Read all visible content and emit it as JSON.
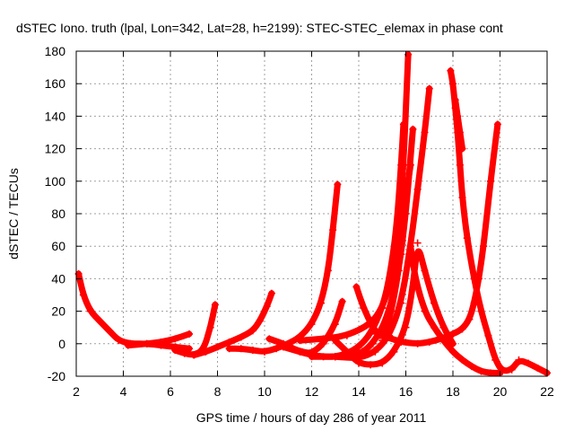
{
  "chart_data": {
    "type": "scatter",
    "title": "dSTEC Iono. truth (lpal, Lon=342, Lat=28, h=2199): STEC-STEC_elemax in phase cont",
    "xlabel": "GPS time / hours of day 286 of year 2011",
    "ylabel": "dSTEC  / TECUs",
    "xlim": [
      2,
      22
    ],
    "ylim": [
      -20,
      180
    ],
    "xticks": [
      2,
      4,
      6,
      8,
      10,
      12,
      14,
      16,
      18,
      20,
      22
    ],
    "yticks": [
      -20,
      0,
      20,
      40,
      60,
      80,
      100,
      120,
      140,
      160,
      180
    ],
    "grid": true,
    "marker": "plus",
    "color": "#ff0000",
    "series": [
      {
        "x": [
          2.1,
          2.3,
          2.6,
          3.0,
          3.4,
          3.8,
          4.3,
          5.0,
          5.6,
          6.2,
          6.8
        ],
        "y": [
          43,
          30,
          20,
          14,
          8,
          2,
          0,
          0,
          -1,
          -2,
          -3
        ]
      },
      {
        "x": [
          4.2,
          5.0,
          5.6,
          6.2,
          6.8
        ],
        "y": [
          -1,
          0,
          1,
          3,
          6
        ]
      },
      {
        "x": [
          6.2,
          6.6,
          7.0,
          7.4,
          7.7,
          7.9
        ],
        "y": [
          -4,
          -6,
          -7,
          -4,
          10,
          24
        ]
      },
      {
        "x": [
          7.0,
          7.5,
          8.0,
          8.5,
          9.0,
          9.5,
          9.8,
          10.1,
          10.3
        ],
        "y": [
          -7,
          -5,
          -2,
          1,
          4,
          8,
          14,
          23,
          31
        ]
      },
      {
        "x": [
          8.5,
          9.0,
          9.5,
          10.0,
          10.5,
          11.0,
          11.5,
          12.0,
          12.4,
          12.7,
          12.9,
          13.1
        ],
        "y": [
          -3,
          -3,
          -4,
          -5,
          -3,
          0,
          4,
          12,
          25,
          45,
          70,
          98
        ]
      },
      {
        "x": [
          10.2,
          10.8,
          11.2,
          11.6,
          12.0,
          12.5,
          13.0,
          13.3
        ],
        "y": [
          3,
          0,
          -3,
          -5,
          -6,
          0,
          12,
          26
        ]
      },
      {
        "x": [
          10.8,
          11.5,
          12.0,
          12.5,
          13.0,
          13.5,
          14.0,
          14.5,
          15.0,
          15.3,
          15.6,
          15.8,
          15.9
        ],
        "y": [
          -2,
          -5,
          -7,
          -8,
          -8,
          -6,
          -2,
          6,
          22,
          40,
          70,
          110,
          135
        ]
      },
      {
        "x": [
          11.5,
          12.5,
          13.5,
          14.5,
          15.0,
          15.4,
          15.7,
          15.9,
          16.1
        ],
        "y": [
          2,
          3,
          5,
          12,
          22,
          40,
          70,
          110,
          178
        ]
      },
      {
        "x": [
          12.0,
          13.0,
          14.0,
          14.6,
          15.2,
          15.7,
          16.0,
          16.3
        ],
        "y": [
          -8,
          -8,
          -7,
          0,
          15,
          45,
          80,
          132
        ]
      },
      {
        "x": [
          13.0,
          14.0,
          14.7,
          15.3,
          15.8,
          16.2,
          16.5,
          16.8,
          17.0
        ],
        "y": [
          -8,
          -9,
          -5,
          5,
          25,
          60,
          95,
          130,
          157
        ]
      },
      {
        "x": [
          13.9,
          14.2,
          14.6,
          15.0,
          15.4,
          15.8,
          16.0,
          16.2
        ],
        "y": [
          35,
          22,
          10,
          2,
          20,
          55,
          90,
          110
        ]
      },
      {
        "x": [
          13.0,
          13.5,
          14.0,
          14.5,
          15.0,
          15.5,
          16.0,
          16.3,
          16.5,
          16.8,
          17.2,
          17.6,
          18.0
        ],
        "y": [
          2,
          -5,
          -12,
          -13,
          -12,
          -5,
          10,
          35,
          62,
          45,
          25,
          10,
          0
        ]
      },
      {
        "x": [
          16.2,
          16.4,
          16.8,
          17.2,
          17.6,
          18.0,
          18.4,
          18.8,
          19.2,
          19.6,
          20.0
        ],
        "y": [
          60,
          40,
          20,
          10,
          2,
          -5,
          -10,
          -14,
          -17,
          -18,
          -18
        ]
      },
      {
        "x": [
          15.0,
          15.8,
          16.5,
          17.0,
          17.5,
          18.0,
          18.4,
          18.7,
          18.9,
          19.1,
          19.3,
          19.6,
          19.9
        ],
        "y": [
          5,
          1,
          0,
          1,
          3,
          6,
          9,
          15,
          25,
          40,
          60,
          100,
          135
        ]
      },
      {
        "x": [
          17.9,
          18.0,
          18.1,
          18.2,
          18.3,
          18.4,
          18.6,
          18.9,
          19.2,
          19.5,
          19.8,
          20.1,
          20.5,
          20.8,
          21.2,
          21.6,
          22.0
        ],
        "y": [
          168,
          160,
          145,
          130,
          110,
          90,
          65,
          40,
          20,
          5,
          -10,
          -17,
          -16,
          -10,
          -12,
          -15,
          -18
        ]
      },
      {
        "x": [
          18.1,
          18.2,
          18.3,
          18.4
        ],
        "y": [
          150,
          140,
          130,
          120
        ]
      }
    ]
  }
}
